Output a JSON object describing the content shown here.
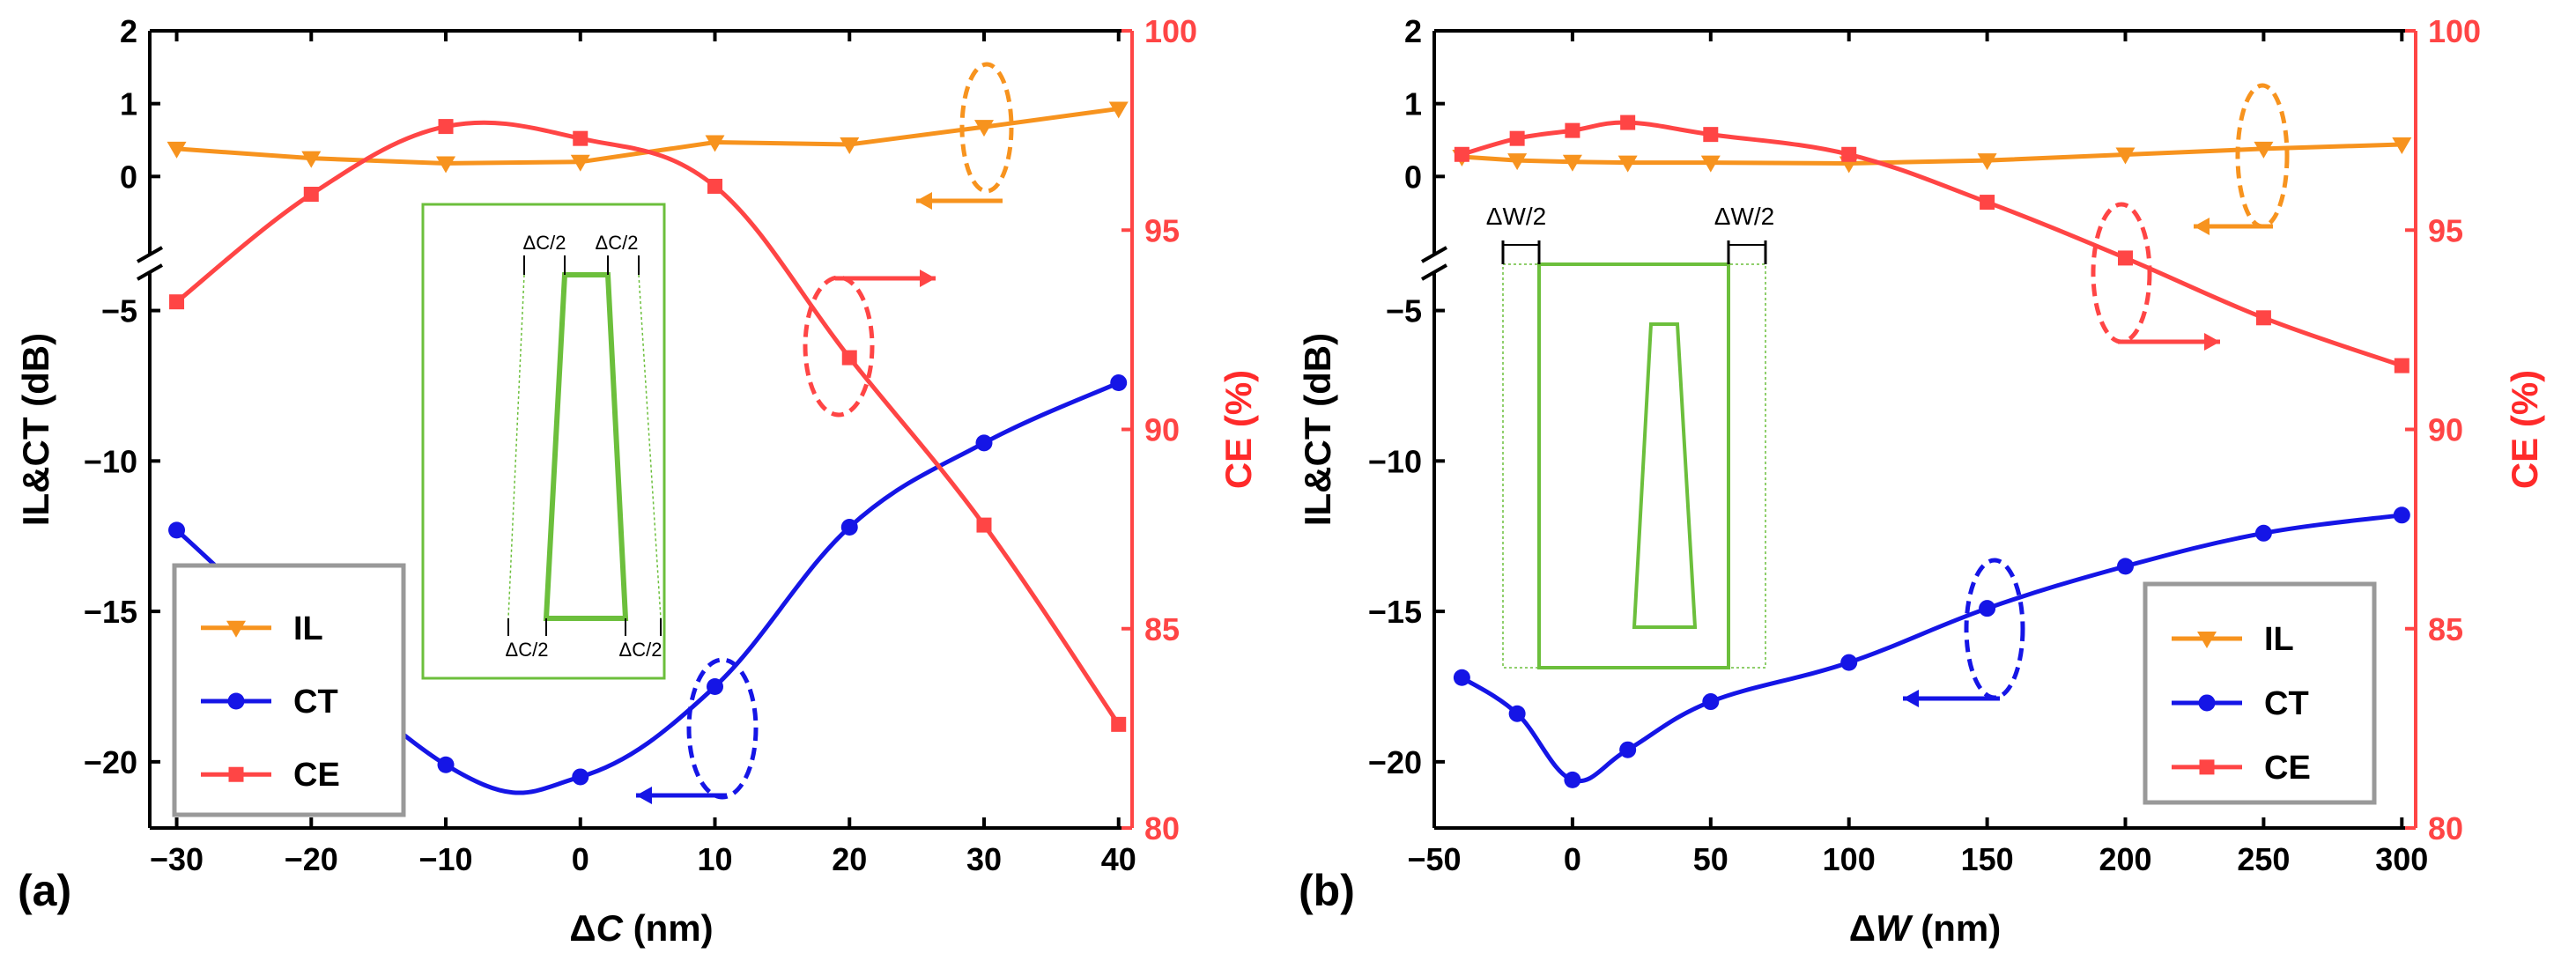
{
  "colors": {
    "il": "#f7931e",
    "ct": "#1515e6",
    "ce": "#ff4545",
    "inset": "#6cbf3c",
    "ceAxis": "#ff2a2a"
  },
  "chart_data": [
    {
      "type": "line",
      "panel_label": "(a)",
      "xlabel_prefix": "Δ",
      "xlabel_var": "C",
      "xlabel_unit": " (nm)",
      "ylabel": "IL&CT (dB)",
      "y2label": "CE (%)",
      "x_ticks": [
        "−30",
        "−20",
        "−10",
        "0",
        "10",
        "20",
        "30",
        "40"
      ],
      "x_tick_values": [
        -30,
        -20,
        -10,
        0,
        10,
        20,
        30,
        40
      ],
      "y_ticks_top": [
        "2",
        "1",
        "0"
      ],
      "y_ticks_top_values": [
        2,
        1,
        0
      ],
      "y_ticks_bottom": [
        "−5",
        "−10",
        "−15",
        "−20"
      ],
      "y_ticks_bottom_values": [
        -5,
        -10,
        -15,
        -20
      ],
      "y2_ticks": [
        "100",
        "95",
        "90",
        "85",
        "80"
      ],
      "y2_tick_values": [
        100,
        95,
        90,
        85,
        80
      ],
      "xlim": [
        -32,
        41
      ],
      "ylim_top": [
        -1,
        2
      ],
      "ylim_bottom": [
        -22.2,
        -3.9
      ],
      "y2lim": [
        80,
        100
      ],
      "legend": [
        "IL",
        "CT",
        "CE"
      ],
      "x": [
        -30,
        -20,
        -10,
        0,
        10,
        20,
        30,
        40
      ],
      "series": [
        {
          "name": "IL",
          "axis": "left",
          "values": [
            0.38,
            0.25,
            0.18,
            0.2,
            0.47,
            0.44,
            0.68,
            0.93
          ]
        },
        {
          "name": "CT",
          "axis": "left",
          "values": [
            -12.3,
            null,
            -20.1,
            -20.5,
            -17.5,
            -12.2,
            -9.4,
            -7.4
          ]
        },
        {
          "name": "CE",
          "axis": "right",
          "values": [
            93.2,
            95.9,
            97.6,
            97.3,
            96.1,
            91.8,
            87.6,
            82.6
          ]
        }
      ],
      "inset_labels": [
        "ΔC/2",
        "ΔC/2",
        "ΔC/2",
        "ΔC/2"
      ]
    },
    {
      "type": "line",
      "panel_label": "(b)",
      "xlabel_prefix": "Δ",
      "xlabel_var": "W",
      "xlabel_unit": " (nm)",
      "ylabel": "IL&CT (dB)",
      "y2label": "CE (%)",
      "x_ticks": [
        "−50",
        "0",
        "50",
        "100",
        "150",
        "200",
        "250",
        "300"
      ],
      "x_tick_values": [
        -50,
        0,
        50,
        100,
        150,
        200,
        250,
        300
      ],
      "y_ticks_top": [
        "2",
        "1",
        "0"
      ],
      "y_ticks_top_values": [
        2,
        1,
        0
      ],
      "y_ticks_bottom": [
        "−5",
        "−10",
        "−15",
        "−20"
      ],
      "y_ticks_bottom_values": [
        -5,
        -10,
        -15,
        -20
      ],
      "y2_ticks": [
        "100",
        "95",
        "90",
        "85",
        "80"
      ],
      "y2_tick_values": [
        100,
        95,
        90,
        85,
        80
      ],
      "xlim": [
        -50,
        305
      ],
      "ylim_top": [
        -1,
        2
      ],
      "ylim_bottom": [
        -22.2,
        -3.9
      ],
      "y2lim": [
        80,
        100
      ],
      "legend": [
        "IL",
        "CT",
        "CE"
      ],
      "x": [
        -40,
        -20,
        0,
        20,
        50,
        100,
        150,
        200,
        250,
        300
      ],
      "series": [
        {
          "name": "IL",
          "axis": "left",
          "values": [
            0.27,
            0.22,
            0.2,
            0.19,
            0.19,
            0.18,
            0.22,
            0.3,
            0.38,
            0.44
          ]
        },
        {
          "name": "CT",
          "axis": "left",
          "values": [
            -17.2,
            -18.4,
            -20.6,
            -19.6,
            -18.0,
            -16.7,
            -14.9,
            -13.5,
            -12.4,
            -11.8
          ]
        },
        {
          "name": "CE",
          "axis": "right",
          "values": [
            96.9,
            97.3,
            97.5,
            97.7,
            97.4,
            96.9,
            95.7,
            94.3,
            92.8,
            91.6
          ]
        }
      ],
      "inset_labels": [
        "ΔW/2",
        "ΔW/2"
      ]
    }
  ]
}
